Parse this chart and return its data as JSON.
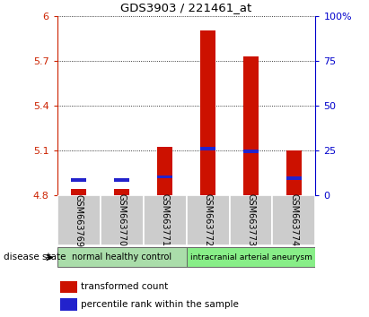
{
  "title": "GDS3903 / 221461_at",
  "samples": [
    "GSM663769",
    "GSM663770",
    "GSM663771",
    "GSM663772",
    "GSM663773",
    "GSM663774"
  ],
  "red_values": [
    4.84,
    4.84,
    5.12,
    5.9,
    5.73,
    5.1
  ],
  "blue_values": [
    4.89,
    4.89,
    4.91,
    5.1,
    5.08,
    4.9
  ],
  "ymin": 4.8,
  "ymax": 6.0,
  "yticks": [
    4.8,
    5.1,
    5.4,
    5.7,
    6.0
  ],
  "ytick_labels": [
    "4.8",
    "5.1",
    "5.4",
    "5.7",
    "6"
  ],
  "y2ticks": [
    0,
    25,
    50,
    75,
    100
  ],
  "y2tick_labels": [
    "0",
    "25",
    "50",
    "75",
    "100%"
  ],
  "left_axis_color": "#cc2200",
  "right_axis_color": "#0000cc",
  "bar_red_color": "#cc1100",
  "bar_blue_color": "#2222cc",
  "group1_label": "normal healthy control",
  "group2_label": "intracranial arterial aneurysm",
  "group1_color": "#aaddaa",
  "group2_color": "#88ee88",
  "disease_state_label": "disease state",
  "legend1": "transformed count",
  "legend2": "percentile rank within the sample",
  "sample_bg_color": "#cccccc",
  "plot_bg_color": "#ffffff"
}
